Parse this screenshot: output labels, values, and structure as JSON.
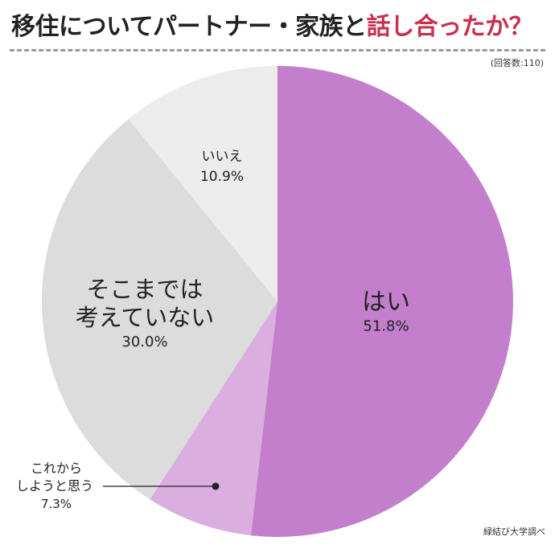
{
  "header": {
    "title_main": "移住についてパートナー・家族と",
    "title_accent": "話し合ったか？",
    "respondents": "(回答数:110)"
  },
  "footer": {
    "source": "緑結び大学調べ"
  },
  "colors": {
    "accent": "#c8304f",
    "slice_yes": "#c37fcc",
    "slice_plan": "#dbaee0",
    "slice_not_considered": "#dcdcdc",
    "slice_no": "#ececec"
  },
  "chart_data": {
    "type": "pie",
    "title": "移住についてパートナー・家族と話し合ったか？",
    "start": "12 o'clock, clockwise",
    "slices": [
      {
        "id": "yes",
        "label_lines": [
          "はい"
        ],
        "percent_label": "51.8%",
        "value": 51.8,
        "color": "#c37fcc"
      },
      {
        "id": "plan",
        "label_lines": [
          "これから",
          "しようと思う"
        ],
        "percent_label": "7.3%",
        "value": 7.3,
        "color": "#dbaee0",
        "label_placement": "outside-left"
      },
      {
        "id": "not-considered",
        "label_lines": [
          "そこまでは",
          "考えていない"
        ],
        "percent_label": "30.0%",
        "value": 30.0,
        "color": "#dcdcdc"
      },
      {
        "id": "no",
        "label_lines": [
          "いいえ"
        ],
        "percent_label": "10.9%",
        "value": 10.9,
        "color": "#ececec"
      }
    ]
  }
}
